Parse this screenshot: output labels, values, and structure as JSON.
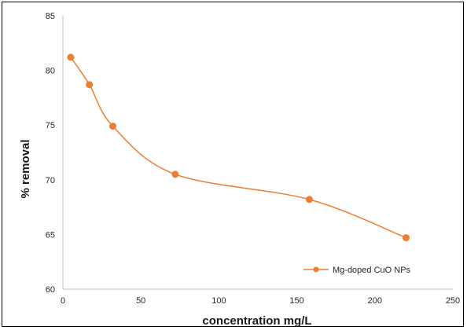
{
  "chart_data": {
    "type": "line",
    "title": "",
    "xlabel": "concentration mg/L",
    "ylabel": "% removal",
    "xlim": [
      0,
      250
    ],
    "ylim": [
      60,
      85
    ],
    "xticks": [
      0,
      50,
      100,
      150,
      200,
      250
    ],
    "yticks": [
      60,
      65,
      70,
      75,
      80,
      85
    ],
    "smooth": true,
    "grid": false,
    "legend_position": "bottom-right",
    "series": [
      {
        "name": "Mg-doped CuO NPs",
        "color": "#ED7D31",
        "x": [
          5,
          17,
          32,
          72,
          158,
          220
        ],
        "y": [
          81.2,
          78.7,
          74.9,
          70.5,
          68.2,
          64.7
        ]
      }
    ]
  }
}
